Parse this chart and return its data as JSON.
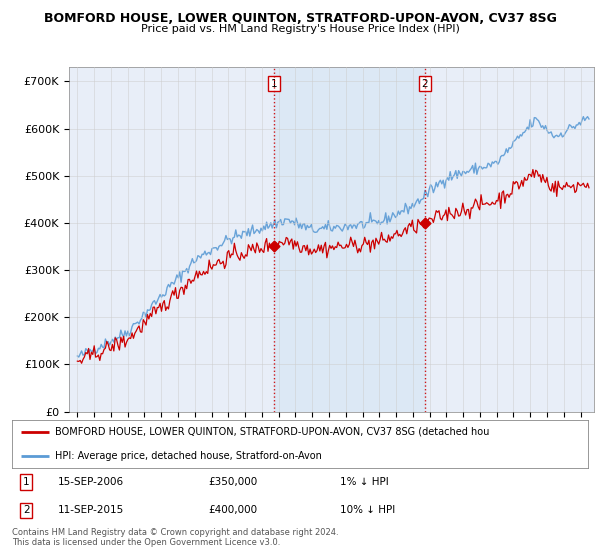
{
  "title": "BOMFORD HOUSE, LOWER QUINTON, STRATFORD-UPON-AVON, CV37 8SG",
  "subtitle": "Price paid vs. HM Land Registry's House Price Index (HPI)",
  "bg_color": "#ffffff",
  "plot_bg_color": "#e8eef8",
  "shade_color": "#dce8f5",
  "grid_color": "#cccccc",
  "ylim": [
    0,
    730000
  ],
  "yticks": [
    0,
    100000,
    200000,
    300000,
    400000,
    500000,
    600000,
    700000
  ],
  "ytick_labels": [
    "£0",
    "£100K",
    "£200K",
    "£300K",
    "£400K",
    "£500K",
    "£600K",
    "£700K"
  ],
  "sale1_year": 2006.7,
  "sale1_price": 350000,
  "sale2_year": 2015.7,
  "sale2_price": 400000,
  "legend_line1": "BOMFORD HOUSE, LOWER QUINTON, STRATFORD-UPON-AVON, CV37 8SG (detached hou",
  "legend_line2": "HPI: Average price, detached house, Stratford-on-Avon",
  "footer": "Contains HM Land Registry data © Crown copyright and database right 2024.\nThis data is licensed under the Open Government Licence v3.0.",
  "hpi_color": "#5b9bd5",
  "price_color": "#cc0000",
  "marker_color": "#cc0000",
  "dashed_color": "#cc0000",
  "xlim_left": 1994.5,
  "xlim_right": 2025.8
}
